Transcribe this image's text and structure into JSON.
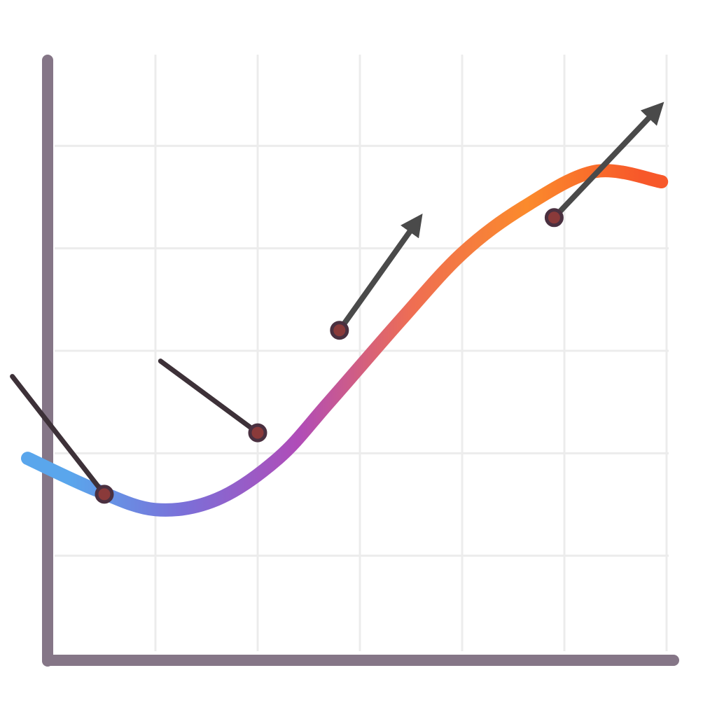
{
  "chart_data": {
    "type": "line",
    "title": "",
    "xlabel": "",
    "ylabel": "",
    "xlim": [
      0,
      6
    ],
    "ylim": [
      0,
      6
    ],
    "grid": true,
    "legend": "none",
    "gradient_colors": [
      "#5aa6ec",
      "#7b6fd8",
      "#b04cb8",
      "#ef6e52",
      "#fb8a2c",
      "#f7582a"
    ],
    "axis_color": "#857687",
    "series": [
      {
        "values_x": [
          -0.25,
          0.4,
          1.0,
          1.6,
          2.2,
          2.7,
          3.4,
          4.0,
          4.6,
          5.3,
          5.95
        ],
        "values_y": [
          1.95,
          1.65,
          1.45,
          1.55,
          1.95,
          2.5,
          3.3,
          3.95,
          4.4,
          4.75,
          4.65
        ]
      }
    ],
    "points": [
      {
        "x": 0.5,
        "y": 1.6
      },
      {
        "x": 2.0,
        "y": 2.2
      },
      {
        "x": 2.8,
        "y": 3.2
      },
      {
        "x": 4.9,
        "y": 4.3
      }
    ],
    "tangent_lines": [
      {
        "x1": -0.4,
        "y1": 2.75,
        "x2": 0.5,
        "y2": 1.6,
        "arrow": false,
        "color": "#3d3138"
      },
      {
        "x1": 1.05,
        "y1": 2.9,
        "x2": 2.0,
        "y2": 2.2,
        "arrow": false,
        "color": "#3d3138"
      },
      {
        "x1": 2.8,
        "y1": 3.2,
        "x2": 3.55,
        "y2": 4.25,
        "arrow": true,
        "color": "#4a4a4a"
      },
      {
        "x1": 4.9,
        "y1": 4.3,
        "x2": 5.9,
        "y2": 5.35,
        "arrow": true,
        "color": "#4a4a4a"
      }
    ]
  }
}
